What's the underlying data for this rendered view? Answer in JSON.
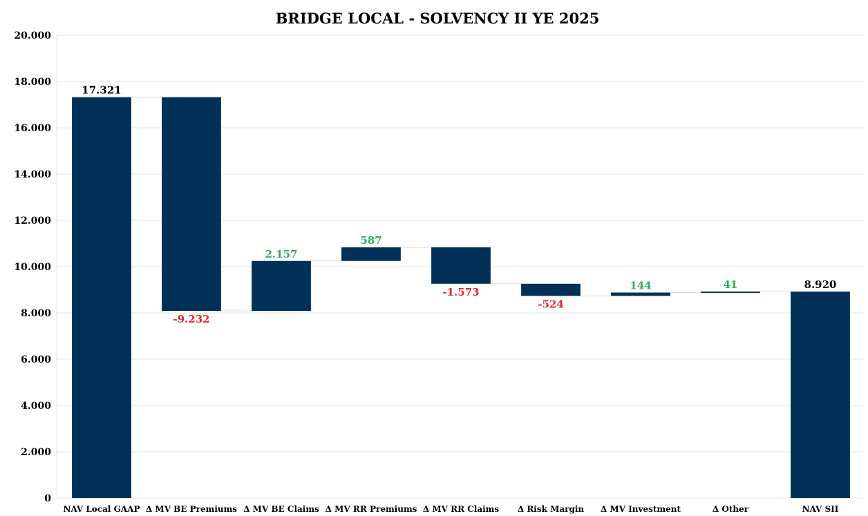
{
  "chart_data": {
    "type": "waterfall",
    "title": "BRIDGE LOCAL - SOLVENCY II YE 2025",
    "xlabel": "",
    "ylabel": "",
    "ylim": [
      0,
      20000
    ],
    "y_ticks": [
      0,
      2000,
      4000,
      6000,
      8000,
      10000,
      12000,
      14000,
      16000,
      18000,
      20000
    ],
    "y_tick_labels": [
      "0",
      "2.000",
      "4.000",
      "6.000",
      "8.000",
      "10.000",
      "12.000",
      "14.000",
      "16.000",
      "18.000",
      "20.000"
    ],
    "grid": true,
    "legend": "none",
    "categories": [
      "NAV Local GAAP",
      "Δ MV BE Premiums",
      "Δ MV BE Claims",
      "Δ MV RR Premiums",
      "Δ MV RR Claims",
      "Δ Risk Margin",
      "Δ MV Investment",
      "Δ Other",
      "NAV SII"
    ],
    "values": [
      17321,
      -9232,
      2157,
      587,
      -1573,
      -524,
      144,
      41,
      8920
    ],
    "kinds": [
      "total",
      "delta",
      "delta",
      "delta",
      "delta",
      "delta",
      "delta",
      "delta",
      "total"
    ],
    "data_labels": [
      "17.321",
      "-9.232",
      "2.157",
      "587",
      "-1.573",
      "-524",
      "144",
      "41",
      "8.920"
    ],
    "colors": {
      "bar": "#003057",
      "positive_label": "#2eab5a",
      "negative_label": "#e8212b",
      "total_label": "#000000",
      "grid": "#e6e6e6",
      "connector": "#d9d9d9"
    }
  }
}
